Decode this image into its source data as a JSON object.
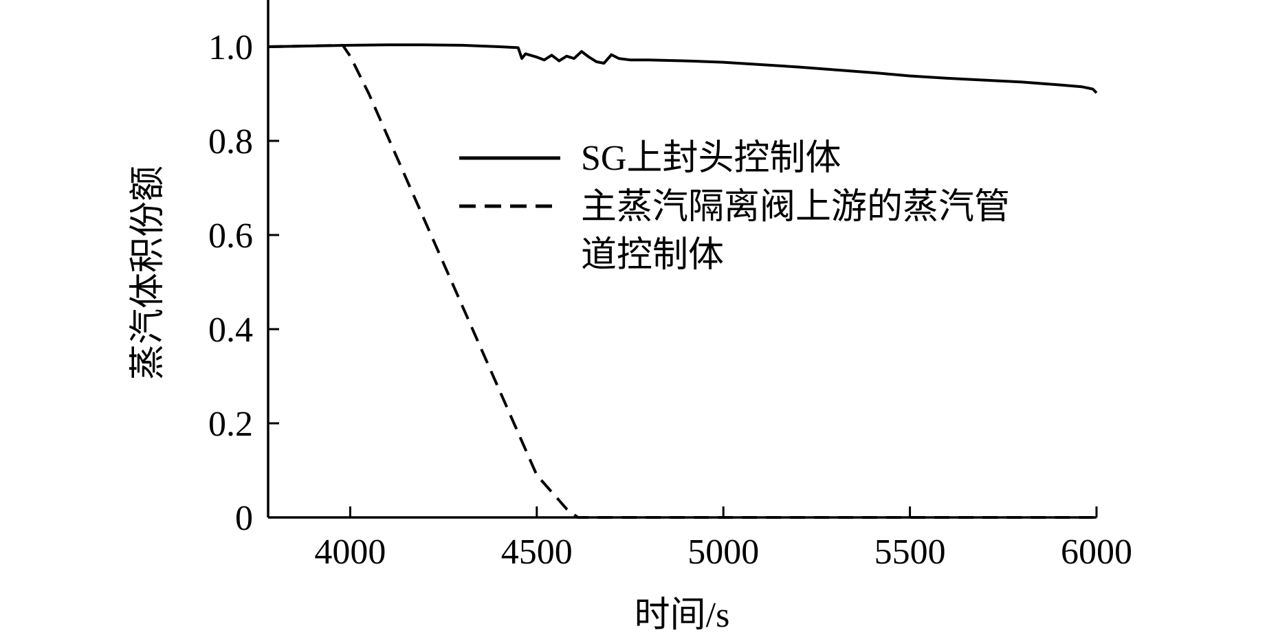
{
  "chart_data": {
    "type": "line",
    "title": "",
    "xlabel": "时间/s",
    "ylabel": "蒸汽体积份额",
    "xlim": [
      3780,
      6000
    ],
    "ylim": [
      0,
      1.1
    ],
    "xticks": [
      4000,
      4500,
      5000,
      5500,
      6000
    ],
    "xtick_labels": [
      "4000",
      "4500",
      "5000",
      "5500",
      "6000"
    ],
    "yticks": [
      0,
      0.2,
      0.4,
      0.6,
      0.8,
      1.0
    ],
    "ytick_labels": [
      "0",
      "0.2",
      "0.4",
      "0.6",
      "0.8",
      "1.0"
    ],
    "grid": false,
    "legend_position": "center-right",
    "series": [
      {
        "name": "SG上封头控制体",
        "line_style": "solid",
        "color": "#000000",
        "x": [
          3780,
          4000,
          4100,
          4200,
          4300,
          4400,
          4450,
          4460,
          4470,
          4500,
          4520,
          4540,
          4560,
          4580,
          4600,
          4620,
          4640,
          4660,
          4680,
          4700,
          4720,
          4750,
          4800,
          4900,
          5000,
          5200,
          5400,
          5500,
          5600,
          5800,
          5900,
          5960,
          5990,
          6000
        ],
        "y": [
          1.0,
          1.003,
          1.004,
          1.004,
          1.003,
          1.0,
          0.998,
          0.975,
          0.985,
          0.978,
          0.972,
          0.982,
          0.97,
          0.98,
          0.975,
          0.99,
          0.978,
          0.968,
          0.965,
          0.983,
          0.975,
          0.972,
          0.972,
          0.97,
          0.967,
          0.957,
          0.945,
          0.938,
          0.933,
          0.925,
          0.919,
          0.915,
          0.91,
          0.902
        ]
      },
      {
        "name": "主蒸汽隔离阀上游的蒸汽管道控制体",
        "line_style": "dashed",
        "color": "#000000",
        "x": [
          3780,
          3980,
          4000,
          4050,
          4100,
          4200,
          4300,
          4400,
          4500,
          4550,
          4580,
          4610,
          6000
        ],
        "y": [
          1.0,
          1.003,
          0.98,
          0.9,
          0.81,
          0.63,
          0.45,
          0.27,
          0.09,
          0.045,
          0.018,
          0.0,
          0.0
        ]
      }
    ]
  }
}
